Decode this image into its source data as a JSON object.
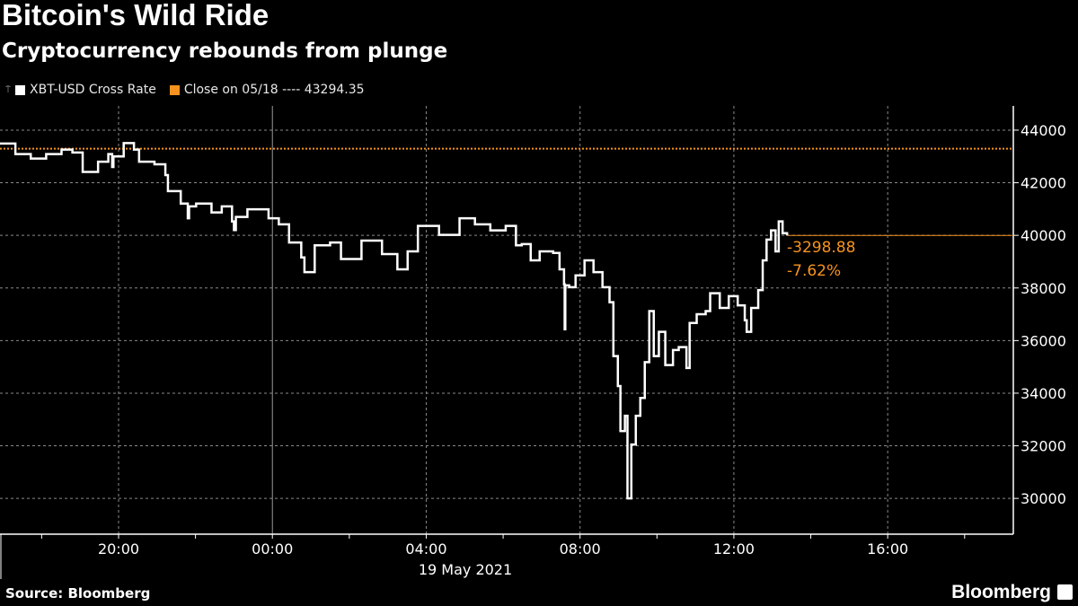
{
  "title": "Bitcoin's Wild Ride",
  "subtitle": "Cryptocurrency rebounds from plunge",
  "source": "Source: Bloomberg",
  "logo": "Bloomberg",
  "chart_data": {
    "type": "line",
    "title": "Bitcoin's Wild Ride",
    "subtitle": "Cryptocurrency rebounds from plunge",
    "xlabel": "19 May 2021",
    "ylabel": "",
    "xlim": [
      "2021-05-18T16:55",
      "2021-05-19T19:16"
    ],
    "ylim": [
      28640,
      44920
    ],
    "x_ticks": [
      "20:00",
      "00:00",
      "04:00",
      "08:00",
      "12:00",
      "16:00"
    ],
    "x_tick_times": [
      "2021-05-18T20:00",
      "2021-05-19T00:00",
      "2021-05-19T04:00",
      "2021-05-19T08:00",
      "2021-05-19T12:00",
      "2021-05-19T16:00"
    ],
    "date_label": "19 May 2021",
    "y_ticks": [
      30000,
      32000,
      34000,
      36000,
      38000,
      40000,
      42000,
      44000
    ],
    "y_axis_side": "right",
    "grid": true,
    "legend_position": "top-left",
    "colors": {
      "series": "#ffffff",
      "reference": "#f7931e",
      "background": "#000000",
      "grid": "#8a8a8a"
    },
    "legend": [
      {
        "label": "XBT-USD Cross Rate",
        "color": "#ffffff"
      },
      {
        "label": "Close on 05/18 ---- 43294.35",
        "color": "#f7931e"
      }
    ],
    "reference_line": {
      "value": 43294.35,
      "style": "dotted"
    },
    "annotation": {
      "change": "-3298.88",
      "percent": "-7.62%",
      "last_value": 39995.47
    },
    "series": [
      {
        "name": "XBT-USD Cross Rate",
        "points": [
          [
            "2021-05-18T16:55",
            43490
          ],
          [
            "2021-05-18T17:19",
            43090
          ],
          [
            "2021-05-18T17:43",
            42920
          ],
          [
            "2021-05-18T18:07",
            43090
          ],
          [
            "2021-05-18T18:31",
            43260
          ],
          [
            "2021-05-18T18:48",
            43150
          ],
          [
            "2021-05-18T19:04",
            42410
          ],
          [
            "2021-05-18T19:28",
            42800
          ],
          [
            "2021-05-18T19:44",
            43090
          ],
          [
            "2021-05-18T19:50",
            42600
          ],
          [
            "2021-05-18T19:52",
            43000
          ],
          [
            "2021-05-18T20:08",
            43510
          ],
          [
            "2021-05-18T20:24",
            43260
          ],
          [
            "2021-05-18T20:32",
            42800
          ],
          [
            "2021-05-18T20:56",
            42700
          ],
          [
            "2021-05-18T21:13",
            42290
          ],
          [
            "2021-05-18T21:17",
            41680
          ],
          [
            "2021-05-18T21:37",
            41210
          ],
          [
            "2021-05-18T21:48",
            40650
          ],
          [
            "2021-05-18T21:50",
            41100
          ],
          [
            "2021-05-18T22:01",
            41210
          ],
          [
            "2021-05-18T22:25",
            40870
          ],
          [
            "2021-05-18T22:41",
            41100
          ],
          [
            "2021-05-18T22:57",
            40530
          ],
          [
            "2021-05-18T23:00",
            40200
          ],
          [
            "2021-05-18T23:03",
            40700
          ],
          [
            "2021-05-18T23:21",
            40990
          ],
          [
            "2021-05-18T23:54",
            40650
          ],
          [
            "2021-05-19T00:10",
            40420
          ],
          [
            "2021-05-19T00:26",
            39730
          ],
          [
            "2021-05-19T00:45",
            39160
          ],
          [
            "2021-05-19T00:50",
            38600
          ],
          [
            "2021-05-19T01:06",
            39620
          ],
          [
            "2021-05-19T01:30",
            39730
          ],
          [
            "2021-05-19T01:47",
            39100
          ],
          [
            "2021-05-19T02:19",
            39800
          ],
          [
            "2021-05-19T02:51",
            39290
          ],
          [
            "2021-05-19T03:15",
            38710
          ],
          [
            "2021-05-19T03:31",
            39390
          ],
          [
            "2021-05-19T03:47",
            40360
          ],
          [
            "2021-05-19T04:20",
            40020
          ],
          [
            "2021-05-19T04:52",
            40650
          ],
          [
            "2021-05-19T05:16",
            40420
          ],
          [
            "2021-05-19T05:40",
            40190
          ],
          [
            "2021-05-19T06:04",
            40360
          ],
          [
            "2021-05-19T06:20",
            39620
          ],
          [
            "2021-05-19T06:29",
            39670
          ],
          [
            "2021-05-19T06:43",
            39050
          ],
          [
            "2021-05-19T06:57",
            39390
          ],
          [
            "2021-05-19T07:18",
            39330
          ],
          [
            "2021-05-19T07:28",
            38710
          ],
          [
            "2021-05-19T07:35",
            38140
          ],
          [
            "2021-05-19T07:36",
            36430
          ],
          [
            "2021-05-19T07:37",
            38100
          ],
          [
            "2021-05-19T07:43",
            38030
          ],
          [
            "2021-05-19T07:53",
            38480
          ],
          [
            "2021-05-19T08:07",
            39050
          ],
          [
            "2021-05-19T08:21",
            38600
          ],
          [
            "2021-05-19T08:35",
            38030
          ],
          [
            "2021-05-19T08:46",
            37460
          ],
          [
            "2021-05-19T08:52",
            35410
          ],
          [
            "2021-05-19T08:59",
            34270
          ],
          [
            "2021-05-19T09:03",
            32560
          ],
          [
            "2021-05-19T09:10",
            33140
          ],
          [
            "2021-05-19T09:14",
            30000
          ],
          [
            "2021-05-19T09:20",
            32050
          ],
          [
            "2021-05-19T09:27",
            33140
          ],
          [
            "2021-05-19T09:34",
            33820
          ],
          [
            "2021-05-19T09:41",
            35180
          ],
          [
            "2021-05-19T09:48",
            37120
          ],
          [
            "2021-05-19T09:55",
            35410
          ],
          [
            "2021-05-19T10:03",
            36330
          ],
          [
            "2021-05-19T10:13",
            35070
          ],
          [
            "2021-05-19T10:25",
            35640
          ],
          [
            "2021-05-19T10:34",
            35750
          ],
          [
            "2021-05-19T10:46",
            34960
          ],
          [
            "2021-05-19T10:51",
            36670
          ],
          [
            "2021-05-19T11:02",
            37000
          ],
          [
            "2021-05-19T11:16",
            37120
          ],
          [
            "2021-05-19T11:23",
            37800
          ],
          [
            "2021-05-19T11:38",
            37240
          ],
          [
            "2021-05-19T11:52",
            37690
          ],
          [
            "2021-05-19T12:06",
            37340
          ],
          [
            "2021-05-19T12:17",
            36770
          ],
          [
            "2021-05-19T12:20",
            36330
          ],
          [
            "2021-05-19T12:27",
            37240
          ],
          [
            "2021-05-19T12:38",
            37920
          ],
          [
            "2021-05-19T12:45",
            39050
          ],
          [
            "2021-05-19T12:51",
            39840
          ],
          [
            "2021-05-19T12:58",
            40190
          ],
          [
            "2021-05-19T13:05",
            39390
          ],
          [
            "2021-05-19T13:10",
            40530
          ],
          [
            "2021-05-19T13:16",
            40080
          ],
          [
            "2021-05-19T13:23",
            39995.47
          ]
        ]
      }
    ]
  }
}
